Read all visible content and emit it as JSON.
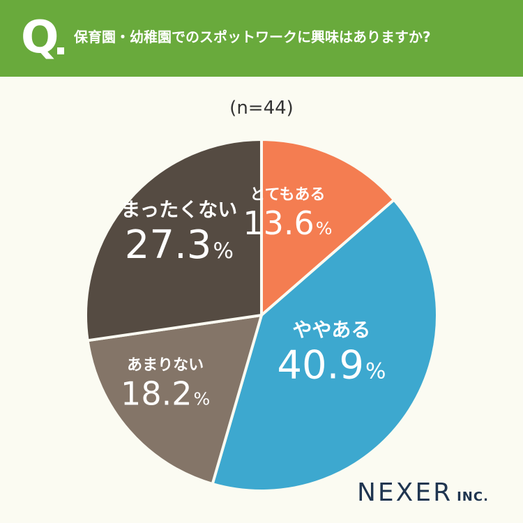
{
  "header": {
    "q_mark": "Q",
    "question": "保育園・幼稚園でのスポットワークに興味はありますか?"
  },
  "sample_size": "(n=44)",
  "logo": {
    "main": "NEXER",
    "inc": "INC."
  },
  "colors": {
    "header_bg": "#69aa3c",
    "background": "#fbfbf2",
    "slices": [
      "#f47d51",
      "#3da8cf",
      "#847568",
      "#554b42"
    ]
  },
  "chart_data": {
    "type": "pie",
    "title": "",
    "n": 44,
    "slices": [
      {
        "label": "とてもある",
        "value": 13.6,
        "display": "13.6"
      },
      {
        "label": "ややある",
        "value": 40.9,
        "display": "40.9"
      },
      {
        "label": "あまりない",
        "value": 18.2,
        "display": "18.2"
      },
      {
        "label": "まったくない",
        "value": 27.3,
        "display": "27.3"
      }
    ],
    "unit": "%",
    "start": "12 o'clock",
    "direction": "clockwise"
  }
}
